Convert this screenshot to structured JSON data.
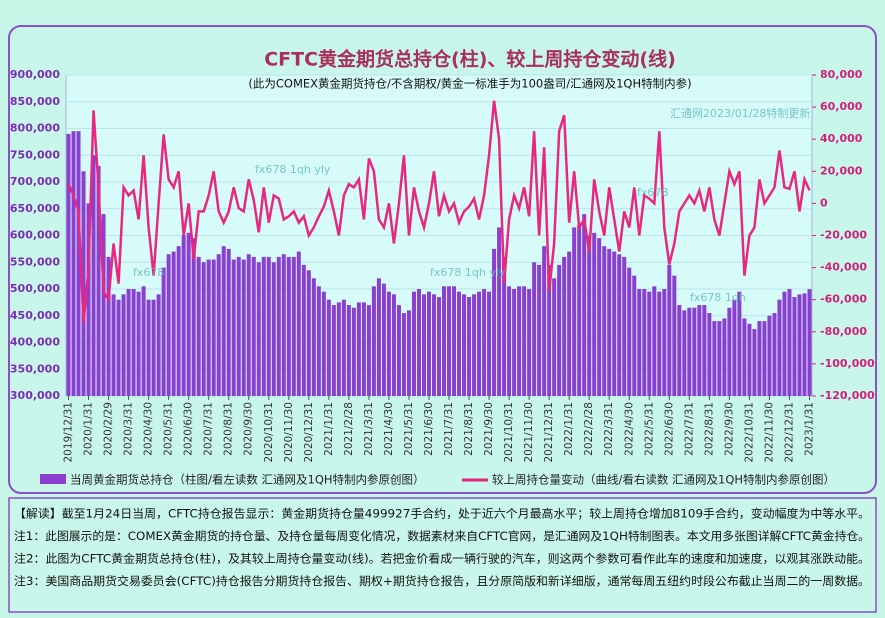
{
  "chart_data": {
    "type": "bar-line",
    "title": "CFTC黄金期货总持仓(柱)、较上周持仓变动(线)",
    "subtitle": "(此为COMEX黄金期货持仓/不含期权/黄金一标准手为100盎司/汇通网及1QH特制内参)",
    "annotations": [
      "fx678 1qh yly",
      "fx678",
      "fx678 1qh yly",
      "fx678",
      "fx678 1qh",
      "汇通网2023/01/28特制更新"
    ],
    "categories": [
      "2019/12/31",
      null,
      null,
      null,
      "2020/1/31",
      null,
      null,
      null,
      "2020/2/29",
      null,
      null,
      null,
      "2020/3/31",
      null,
      null,
      null,
      "2020/4/30",
      null,
      null,
      null,
      "2020/5/31",
      null,
      null,
      null,
      "2020/6/30",
      null,
      null,
      null,
      "2020/7/31",
      null,
      null,
      null,
      "2020/8/31",
      null,
      null,
      null,
      "2020/9/30",
      null,
      null,
      null,
      "2020/10/31",
      null,
      null,
      null,
      "2020/11/30",
      null,
      null,
      null,
      "2020/12/31",
      null,
      null,
      null,
      "2021/1/31",
      null,
      null,
      null,
      "2021/2/28",
      null,
      null,
      null,
      "2021/3/31",
      null,
      null,
      null,
      "2021/4/30",
      null,
      null,
      null,
      "2021/5/31",
      null,
      null,
      null,
      "2021/6/30",
      null,
      null,
      null,
      "2021/7/31",
      null,
      null,
      null,
      "2021/8/31",
      null,
      null,
      null,
      "2021/9/30",
      null,
      null,
      null,
      "2021/10/31",
      null,
      null,
      null,
      "2021/11/30",
      null,
      null,
      null,
      "2021/12/31",
      null,
      null,
      null,
      "2022/1/31",
      null,
      null,
      null,
      "2022/2/28",
      null,
      null,
      null,
      "2022/3/31",
      null,
      null,
      null,
      "2022/4/30",
      null,
      null,
      null,
      "2022/5/31",
      null,
      null,
      null,
      "2022/6/30",
      null,
      null,
      null,
      "2022/7/31",
      null,
      null,
      null,
      "2022/8/31",
      null,
      null,
      null,
      "2022/9/30",
      null,
      null,
      null,
      "2022/10/31",
      null,
      null,
      null,
      "2022/11/30",
      null,
      null,
      null,
      "2022/12/31",
      null,
      null,
      null,
      "2023/1/31"
    ],
    "series": [
      {
        "name": "当周黄金期货总持仓（柱图/看左读数 汇通网及1QH特制内参原创图）",
        "color": "#8a3fd0",
        "type": "bar",
        "values": [
          790000,
          795000,
          795000,
          720000,
          660000,
          750000,
          730000,
          640000,
          560000,
          490000,
          480000,
          490000,
          500000,
          500000,
          495000,
          505000,
          480000,
          480000,
          490000,
          540000,
          565000,
          570000,
          580000,
          600000,
          605000,
          595000,
          560000,
          550000,
          555000,
          555000,
          565000,
          580000,
          575000,
          555000,
          560000,
          555000,
          565000,
          560000,
          550000,
          560000,
          560000,
          550000,
          560000,
          565000,
          560000,
          560000,
          570000,
          545000,
          535000,
          520000,
          505000,
          495000,
          480000,
          470000,
          475000,
          480000,
          470000,
          465000,
          475000,
          475000,
          470000,
          505000,
          520000,
          510000,
          495000,
          490000,
          470000,
          455000,
          460000,
          495000,
          500000,
          490000,
          495000,
          490000,
          485000,
          505000,
          505000,
          505000,
          495000,
          490000,
          485000,
          490000,
          495000,
          500000,
          495000,
          575000,
          615000,
          560000,
          505000,
          500000,
          505000,
          505000,
          500000,
          550000,
          545000,
          580000,
          545000,
          520000,
          545000,
          560000,
          570000,
          615000,
          620000,
          640000,
          600000,
          605000,
          595000,
          580000,
          575000,
          570000,
          565000,
          560000,
          540000,
          525000,
          500000,
          500000,
          495000,
          505000,
          495000,
          500000,
          545000,
          525000,
          470000,
          460000,
          465000,
          465000,
          470000,
          470000,
          455000,
          440000,
          440000,
          445000,
          465000,
          480000,
          495000,
          445000,
          435000,
          425000,
          440000,
          440000,
          450000,
          455000,
          480000,
          495000,
          500000,
          485000,
          490000,
          491818,
          499927
        ]
      },
      {
        "name": "较上周持仓量变动（曲线/看右读数 汇通网及1QH特制内参原创图）",
        "color": "#e8287e",
        "type": "line",
        "axis": "y2",
        "values": [
          12000,
          5000,
          -5000,
          -75000,
          -40000,
          58000,
          10000,
          -55000,
          -60000,
          -25000,
          -50000,
          10000,
          5000,
          8000,
          -10000,
          30000,
          -15000,
          -45000,
          0,
          43000,
          15000,
          10000,
          20000,
          -20000,
          0,
          -35000,
          -5000,
          -5000,
          5000,
          20000,
          -5000,
          -12000,
          -5000,
          10000,
          -3000,
          -5000,
          15000,
          2000,
          -18000,
          10000,
          -12000,
          5000,
          3000,
          -10000,
          -8000,
          -5000,
          -12000,
          -8000,
          -20000,
          -15000,
          -8000,
          -2000,
          8000,
          -5000,
          -20000,
          5000,
          12000,
          10000,
          15000,
          -10000,
          28000,
          20000,
          -10000,
          -15000,
          0,
          -25000,
          0,
          30000,
          -20000,
          10000,
          -5000,
          -15000,
          0,
          20000,
          -8000,
          5000,
          -5000,
          0,
          -12000,
          -5000,
          -2000,
          3000,
          -10000,
          5000,
          30000,
          64000,
          40000,
          -50000,
          -10000,
          5000,
          -3000,
          10000,
          -8000,
          45000,
          -20000,
          35000,
          -55000,
          -25000,
          45000,
          55000,
          -12000,
          20000,
          -15000,
          -10000,
          -30000,
          15000,
          -5000,
          -20000,
          10000,
          -10000,
          -30000,
          -5000,
          -15000,
          10000,
          -20000,
          5000,
          3000,
          0,
          45000,
          -15000,
          -38000,
          -25000,
          -5000,
          0,
          5000,
          0,
          8000,
          -5000,
          10000,
          -10000,
          -20000,
          0,
          20000,
          12000,
          20000,
          -45000,
          -20000,
          -15000,
          15000,
          0,
          5000,
          10000,
          33000,
          10000,
          9000,
          20000,
          -5000,
          15000,
          8109
        ]
      }
    ],
    "ylim": [
      300000,
      900000
    ],
    "yticks": [
      {
        "value": 300000,
        "label": "300,000"
      },
      {
        "value": 350000,
        "label": "350,000"
      },
      {
        "value": 400000,
        "label": "400,000"
      },
      {
        "value": 450000,
        "label": "450,000"
      },
      {
        "value": 500000,
        "label": "500,000"
      },
      {
        "value": 550000,
        "label": "550,000"
      },
      {
        "value": 600000,
        "label": "600,000"
      },
      {
        "value": 650000,
        "label": "650,000"
      },
      {
        "value": 700000,
        "label": "700,000"
      },
      {
        "value": 750000,
        "label": "750,000"
      },
      {
        "value": 800000,
        "label": "800,000"
      },
      {
        "value": 850000,
        "label": "850,000"
      },
      {
        "value": 900000,
        "label": "900,000"
      }
    ],
    "y2lim": [
      -120000,
      80000
    ],
    "y2ticks": [
      {
        "value": -120000,
        "label": "-120,000"
      },
      {
        "value": -100000,
        "label": "-100,000"
      },
      {
        "value": -80000,
        "label": "-80,000"
      },
      {
        "value": -60000,
        "label": "-60,000"
      },
      {
        "value": -40000,
        "label": "-40,000"
      },
      {
        "value": -20000,
        "label": "-20,000"
      },
      0,
      {
        "value": 20000,
        "label": "20,000"
      },
      {
        "value": 40000,
        "label": "40,000"
      },
      {
        "value": 60000,
        "label": "60,000"
      },
      {
        "value": 80000,
        "label": "80,000"
      }
    ],
    "grid": true
  },
  "notes": [
    "【解读】截至1月24日当周，CFTC持仓报告显示：黄金期货持仓量499927手合约，处于近六个月最高水平；较上周持仓增加8109手合约，变动幅度为中等水平。",
    "注1：此图展示的是：COMEX黄金期货的持仓量、及持仓量每周变化情况，数据素材来自CFTC官网，是汇通网及1QH特制图表。本文用多张图详解CFTC黄金持仓。",
    "注2：此图为CFTC黄金期货总持仓(柱)，及其较上周持仓量变动(线)。若把金价看成一辆行驶的汽车，则这两个参数可看作此车的速度和加速度，以观其涨跌动能。",
    "注3：美国商品期货交易委员会(CFTC)持仓报告分期货持仓报告、期权+期货持仓报告，且分原简版和新详细版，通常每周五纽约时段公布截止当周二的一周数据。"
  ]
}
